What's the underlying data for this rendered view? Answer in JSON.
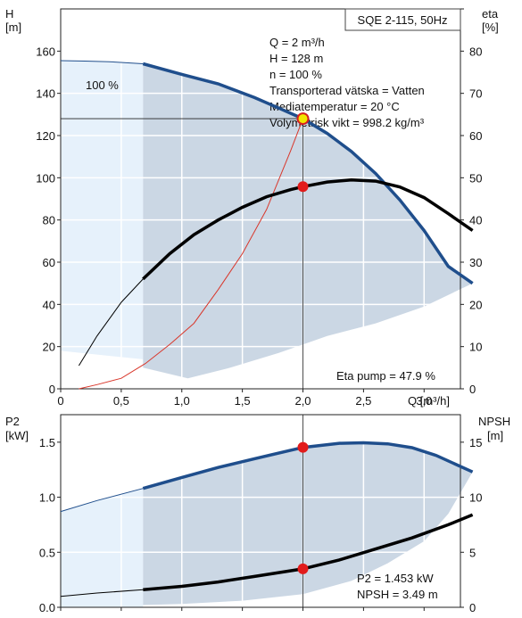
{
  "chart_data": [
    {
      "type": "line",
      "title": "SQE 2-115, 50Hz",
      "xlabel": "Q [m³/h]",
      "ylabel_left_unit": "H",
      "ylabel_left_unit2": "[m]",
      "ylabel_right_unit": "eta",
      "ylabel_right_unit2": "[%]",
      "xlim": [
        0,
        3.3
      ],
      "ylim_left": [
        0,
        180
      ],
      "ylim_right": [
        0,
        90
      ],
      "x_ticks": [
        0,
        0.5,
        1.0,
        1.5,
        2.0,
        2.5,
        3.0
      ],
      "x_tick_labels": [
        "0",
        "0,5",
        "1,0",
        "1,5",
        "2,0",
        "2,5",
        "3,0"
      ],
      "y_ticks_left": [
        0,
        20,
        40,
        60,
        80,
        100,
        120,
        140,
        160
      ],
      "y_tick_labels_left": [
        "0",
        "20",
        "40",
        "60",
        "80",
        "100",
        "120",
        "140",
        "160"
      ],
      "y_ticks_right": [
        0,
        10,
        20,
        30,
        40,
        50,
        60,
        70,
        80
      ],
      "y_tick_labels_right": [
        "0",
        "10",
        "20",
        "30",
        "40",
        "50",
        "60",
        "70",
        "80"
      ],
      "grid": true,
      "curve_label": "100 %",
      "info_lines": [
        "Q = 2 m³/h",
        "H = 128 m",
        "n = 100 %",
        "Transporterad vätska = Vatten",
        "Mediatemperatur = 20 °C",
        "Volymetrisk vikt = 998.2 kg/m³"
      ],
      "eta_note": "Eta pump = 47.9 %",
      "series": [
        {
          "role": "head_curve",
          "color": "#1f4e8c",
          "x": [
            0,
            0.2,
            0.4,
            0.68,
            1.0,
            1.3,
            1.6,
            1.8,
            2.0,
            2.2,
            2.4,
            2.6,
            2.8,
            3.0,
            3.2,
            3.4
          ],
          "y": [
            155.5,
            155.3,
            155,
            154,
            149,
            144.5,
            138,
            133,
            128,
            121,
            112.5,
            102,
            89.5,
            75,
            58,
            50
          ]
        },
        {
          "role": "efficiency_curve",
          "axis": "right",
          "color": "#000000",
          "x": [
            0.15,
            0.3,
            0.5,
            0.68,
            0.9,
            1.1,
            1.3,
            1.5,
            1.7,
            1.9,
            2.0,
            2.2,
            2.4,
            2.6,
            2.8,
            3.0,
            3.2,
            3.4
          ],
          "y": [
            5.5,
            12.5,
            20.5,
            26,
            32,
            36.5,
            40,
            43,
            45.5,
            47.2,
            47.9,
            49,
            49.5,
            49.2,
            47.8,
            45.3,
            41.5,
            37.5
          ]
        },
        {
          "role": "system_curve",
          "color": "#d9372b",
          "x": [
            0.15,
            0.3,
            0.5,
            0.7,
            0.9,
            1.1,
            1.3,
            1.5,
            1.7,
            1.9,
            2.0
          ],
          "y": [
            0,
            2,
            5,
            12,
            21,
            31,
            47,
            64,
            85,
            113,
            128
          ]
        },
        {
          "role": "operating_point_head",
          "color": "#f2e600",
          "x": [
            2.0
          ],
          "y": [
            128
          ]
        },
        {
          "role": "operating_point_eta",
          "axis": "right",
          "color": "#e21b1b",
          "x": [
            2.0
          ],
          "y": [
            47.9
          ]
        }
      ],
      "band_light_color": "#e6f1fb",
      "band_dark_color": "#cbd7e4",
      "band_upper": [
        [
          0,
          155.5
        ],
        [
          0.68,
          154
        ]
      ],
      "band_lower": [
        [
          0,
          18
        ],
        [
          0.68,
          14
        ]
      ],
      "range_upper": [
        [
          0.68,
          154
        ],
        [
          1.0,
          149
        ],
        [
          1.3,
          144.5
        ],
        [
          1.6,
          138
        ],
        [
          1.8,
          133
        ],
        [
          2.0,
          128
        ],
        [
          2.2,
          121
        ],
        [
          2.4,
          112.5
        ],
        [
          2.6,
          102
        ],
        [
          2.8,
          89.5
        ],
        [
          3.0,
          75
        ],
        [
          3.2,
          58
        ],
        [
          3.4,
          50
        ]
      ],
      "range_lower": [
        [
          3.4,
          50
        ],
        [
          3.0,
          39
        ],
        [
          2.6,
          31
        ],
        [
          2.2,
          25
        ],
        [
          1.8,
          17
        ],
        [
          1.4,
          10
        ],
        [
          1.05,
          5
        ],
        [
          0.68,
          10
        ]
      ]
    },
    {
      "type": "line",
      "xlabel": "",
      "ylabel_left_unit": "P2",
      "ylabel_left_unit2": "[kW]",
      "ylabel_right_unit": "NPSH",
      "ylabel_right_unit2": "[m]",
      "xlim": [
        0,
        3.3
      ],
      "ylim_left": [
        0,
        1.75
      ],
      "ylim_right": [
        0,
        17.5
      ],
      "y_ticks_left": [
        0,
        0.5,
        1.0,
        1.5
      ],
      "y_tick_labels_left": [
        "0.0",
        "0.5",
        "1.0",
        "1.5"
      ],
      "y_ticks_right": [
        0,
        5,
        10,
        15
      ],
      "y_tick_labels_right": [
        "0",
        "5",
        "10",
        "15"
      ],
      "grid": true,
      "notes": [
        "P2 = 1.453 kW",
        "NPSH = 3.49 m"
      ],
      "series": [
        {
          "role": "power_curve",
          "color": "#1f4e8c",
          "x": [
            0,
            0.3,
            0.68,
            1.0,
            1.3,
            1.6,
            2.0,
            2.3,
            2.5,
            2.7,
            2.9,
            3.1,
            3.4
          ],
          "y": [
            0.87,
            0.97,
            1.08,
            1.18,
            1.27,
            1.35,
            1.453,
            1.49,
            1.495,
            1.485,
            1.45,
            1.38,
            1.23
          ]
        },
        {
          "role": "npsh_curve",
          "axis": "right",
          "color": "#000000",
          "x": [
            0,
            0.3,
            0.68,
            1.0,
            1.3,
            1.6,
            2.0,
            2.3,
            2.6,
            2.9,
            3.2,
            3.4
          ],
          "y": [
            1.0,
            1.3,
            1.6,
            1.9,
            2.3,
            2.8,
            3.49,
            4.3,
            5.3,
            6.3,
            7.5,
            8.4
          ]
        },
        {
          "role": "operating_point_power",
          "color": "#e21b1b",
          "x": [
            2.0
          ],
          "y": [
            1.453
          ]
        },
        {
          "role": "operating_point_npsh",
          "axis": "right",
          "color": "#e21b1b",
          "x": [
            2.0
          ],
          "y": [
            3.49
          ]
        }
      ],
      "band_upper": [
        [
          0,
          0.87
        ],
        [
          0.3,
          0.97
        ],
        [
          0.68,
          1.08
        ]
      ],
      "range_upper": [
        [
          0.68,
          1.08
        ],
        [
          1.0,
          1.18
        ],
        [
          1.3,
          1.27
        ],
        [
          1.6,
          1.35
        ],
        [
          2.0,
          1.453
        ],
        [
          2.3,
          1.49
        ],
        [
          2.5,
          1.495
        ],
        [
          2.7,
          1.485
        ],
        [
          2.9,
          1.45
        ],
        [
          3.1,
          1.38
        ],
        [
          3.4,
          1.23
        ]
      ],
      "range_lower": [
        [
          3.4,
          1.23
        ],
        [
          3.2,
          0.85
        ],
        [
          3.0,
          0.6
        ],
        [
          2.7,
          0.4
        ],
        [
          2.4,
          0.24
        ],
        [
          2.0,
          0.12
        ],
        [
          1.5,
          0.06
        ],
        [
          1.0,
          0.03
        ],
        [
          0.68,
          0.02
        ]
      ]
    }
  ]
}
